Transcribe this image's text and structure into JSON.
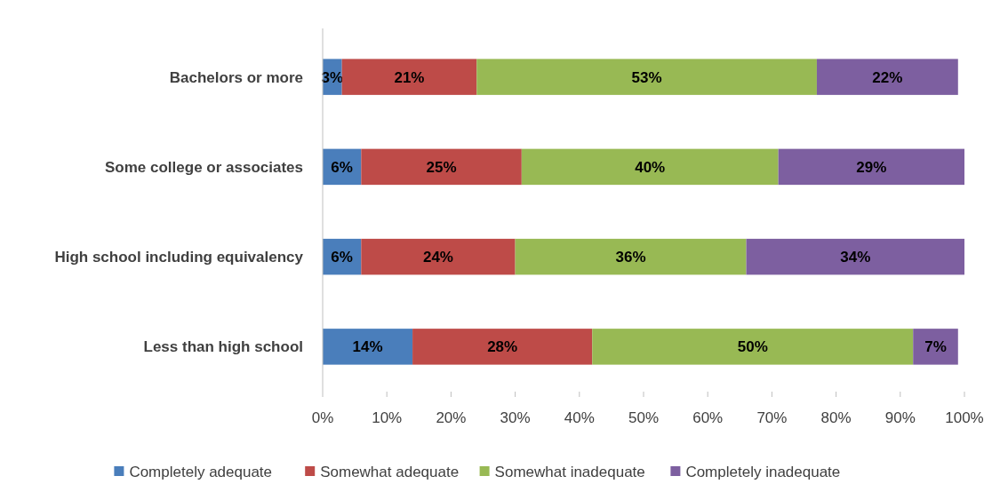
{
  "chart_data": {
    "type": "bar",
    "orientation": "horizontal",
    "stacked": true,
    "categories": [
      "Bachelors or more",
      "Some college or associates",
      "High school including equivalency",
      "Less than high school"
    ],
    "series": [
      {
        "name": "Completely adequate",
        "color": "#4a7ebb",
        "values": [
          3,
          6,
          6,
          14
        ],
        "value_labels": [
          "3%",
          "6%",
          "6%",
          "14%"
        ]
      },
      {
        "name": "Somewhat adequate",
        "color": "#be4b48",
        "values": [
          21,
          25,
          24,
          28
        ],
        "value_labels": [
          "21%",
          "25%",
          "24%",
          "28%"
        ]
      },
      {
        "name": "Somewhat inadequate",
        "color": "#98b954",
        "values": [
          53,
          40,
          36,
          50
        ],
        "value_labels": [
          "53%",
          "40%",
          "36%",
          "50%"
        ]
      },
      {
        "name": "Completely inadequate",
        "color": "#7d5fa0",
        "values": [
          22,
          29,
          34,
          7
        ],
        "value_labels": [
          "22%",
          "29%",
          "34%",
          "7%"
        ]
      }
    ],
    "xlim": [
      0,
      100
    ],
    "xticks": [
      {
        "value": 0,
        "label": "0%"
      },
      {
        "value": 10,
        "label": "10%"
      },
      {
        "value": 20,
        "label": "20%"
      },
      {
        "value": 30,
        "label": "30%"
      },
      {
        "value": 40,
        "label": "40%"
      },
      {
        "value": 50,
        "label": "50%"
      },
      {
        "value": 60,
        "label": "60%"
      },
      {
        "value": 70,
        "label": "70%"
      },
      {
        "value": 80,
        "label": "80%"
      },
      {
        "value": 90,
        "label": "90%"
      },
      {
        "value": 100,
        "label": "100%"
      }
    ],
    "grid": false,
    "legend": "bottom"
  }
}
